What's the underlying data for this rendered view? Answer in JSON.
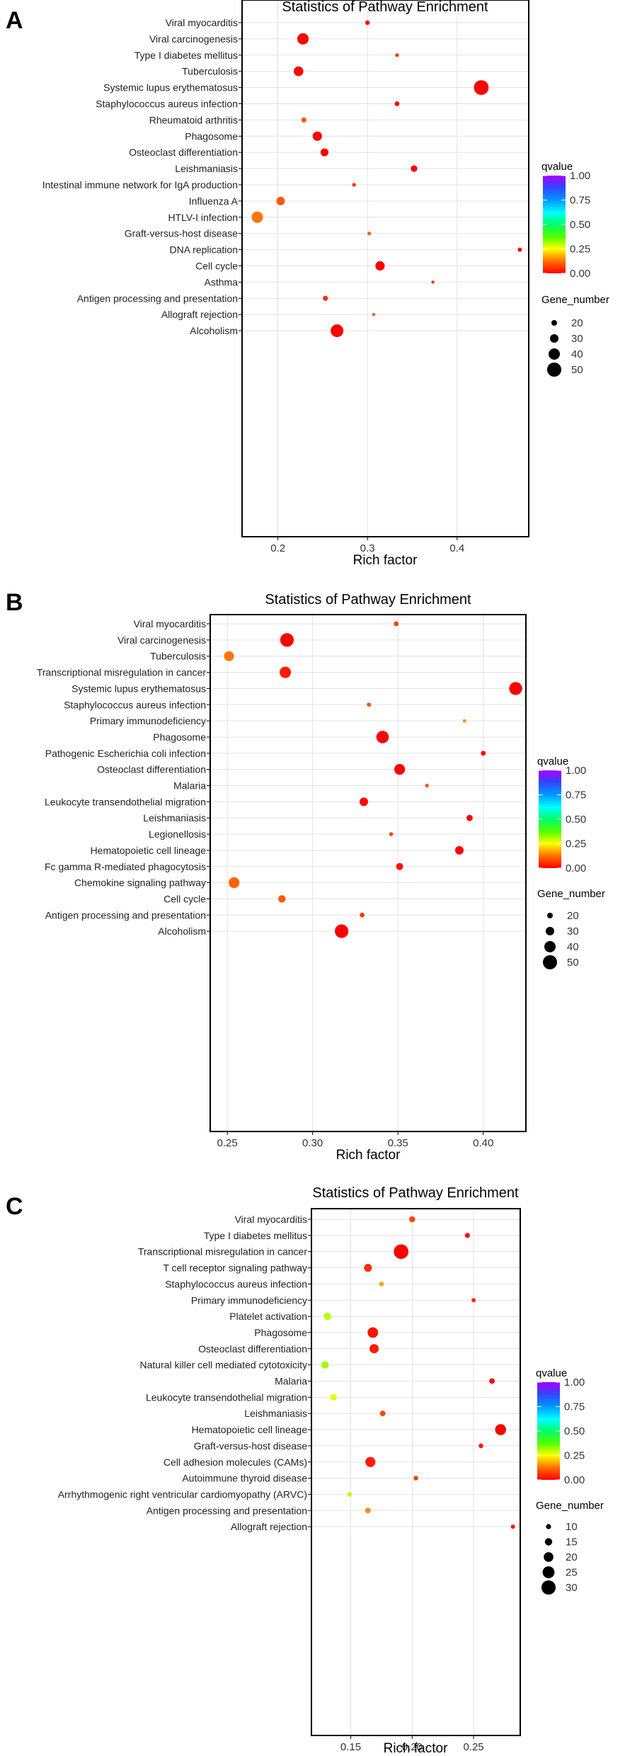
{
  "chart_data": [
    {
      "type": "scatter",
      "panel_label": "A",
      "title": "Statistics of Pathway Enrichment",
      "xlabel": "Rich factor",
      "ylabel": "",
      "xlim": [
        0.16,
        0.48
      ],
      "xticks": [
        0.2,
        0.3,
        0.4
      ],
      "xtick_labels": [
        "0.2",
        "0.3",
        "0.4"
      ],
      "grid": true,
      "legend_position": "right",
      "color_legend": {
        "title": "qvalue",
        "min": 0,
        "max": 1,
        "ticks": [
          "1.00",
          "0.75",
          "0.50",
          "0.25",
          "0.00"
        ]
      },
      "size_legend": {
        "title": "Gene_number",
        "values": [
          20,
          30,
          40,
          50
        ],
        "labels": [
          "20",
          "30",
          "40",
          "50"
        ],
        "min": 10,
        "max": 55
      },
      "points": [
        {
          "pathway": "Viral myocarditis",
          "rich_factor": 0.3,
          "gene_number": 16,
          "qvalue": 0.01
        },
        {
          "pathway": "Viral carcinogenesis",
          "rich_factor": 0.228,
          "gene_number": 40,
          "qvalue": 0.0
        },
        {
          "pathway": "Type I diabetes mellitus",
          "rich_factor": 0.333,
          "gene_number": 13,
          "qvalue": 0.06
        },
        {
          "pathway": "Tuberculosis",
          "rich_factor": 0.223,
          "gene_number": 34,
          "qvalue": 0.0
        },
        {
          "pathway": "Systemic lupus erythematosus",
          "rich_factor": 0.427,
          "gene_number": 52,
          "qvalue": 0.0
        },
        {
          "pathway": "Staphylococcus aureus infection",
          "rich_factor": 0.333,
          "gene_number": 17,
          "qvalue": 0.01
        },
        {
          "pathway": "Rheumatoid arthritis",
          "rich_factor": 0.229,
          "gene_number": 18,
          "qvalue": 0.1
        },
        {
          "pathway": "Phagosome",
          "rich_factor": 0.244,
          "gene_number": 33,
          "qvalue": 0.0
        },
        {
          "pathway": "Osteoclast differentiation",
          "rich_factor": 0.252,
          "gene_number": 28,
          "qvalue": 0.0
        },
        {
          "pathway": "Leishmaniasis",
          "rich_factor": 0.352,
          "gene_number": 23,
          "qvalue": 0.0
        },
        {
          "pathway": "Intestinal immune network for IgA production",
          "rich_factor": 0.285,
          "gene_number": 13,
          "qvalue": 0.05
        },
        {
          "pathway": "Influenza A",
          "rich_factor": 0.203,
          "gene_number": 30,
          "qvalue": 0.1
        },
        {
          "pathway": "HTLV-I infection",
          "rich_factor": 0.177,
          "gene_number": 40,
          "qvalue": 0.13
        },
        {
          "pathway": "Graft-versus-host disease",
          "rich_factor": 0.302,
          "gene_number": 13,
          "qvalue": 0.1
        },
        {
          "pathway": "DNA replication",
          "rich_factor": 0.47,
          "gene_number": 15,
          "qvalue": 0.0
        },
        {
          "pathway": "Cell cycle",
          "rich_factor": 0.314,
          "gene_number": 33,
          "qvalue": 0.0
        },
        {
          "pathway": "Asthma",
          "rich_factor": 0.373,
          "gene_number": 11,
          "qvalue": 0.05
        },
        {
          "pathway": "Antigen processing and presentation",
          "rich_factor": 0.253,
          "gene_number": 18,
          "qvalue": 0.05
        },
        {
          "pathway": "Allograft rejection",
          "rich_factor": 0.307,
          "gene_number": 11,
          "qvalue": 0.1
        },
        {
          "pathway": "Alcoholism",
          "rich_factor": 0.266,
          "gene_number": 45,
          "qvalue": 0.0
        }
      ]
    },
    {
      "type": "scatter",
      "panel_label": "B",
      "title": "Statistics of Pathway Enrichment",
      "xlabel": "Rich factor",
      "ylabel": "",
      "xlim": [
        0.24,
        0.425
      ],
      "xticks": [
        0.25,
        0.3,
        0.35,
        0.4
      ],
      "xtick_labels": [
        "0.25",
        "0.30",
        "0.35",
        "0.40"
      ],
      "grid": true,
      "legend_position": "right",
      "color_legend": {
        "title": "qvalue",
        "min": 0,
        "max": 1,
        "ticks": [
          "1.00",
          "0.75",
          "0.50",
          "0.25",
          "0.00"
        ]
      },
      "size_legend": {
        "title": "Gene_number",
        "values": [
          20,
          30,
          40,
          50
        ],
        "labels": [
          "20",
          "30",
          "40",
          "50"
        ],
        "min": 10,
        "max": 55
      },
      "points": [
        {
          "pathway": "Viral myocarditis",
          "rich_factor": 0.349,
          "gene_number": 17,
          "qvalue": 0.07
        },
        {
          "pathway": "Viral carcinogenesis",
          "rich_factor": 0.285,
          "gene_number": 48,
          "qvalue": 0.0
        },
        {
          "pathway": "Tuberculosis",
          "rich_factor": 0.251,
          "gene_number": 35,
          "qvalue": 0.13
        },
        {
          "pathway": "Transcriptional misregulation in cancer",
          "rich_factor": 0.284,
          "gene_number": 40,
          "qvalue": 0.03
        },
        {
          "pathway": "Systemic lupus erythematosus",
          "rich_factor": 0.419,
          "gene_number": 46,
          "qvalue": 0.0
        },
        {
          "pathway": "Staphylococcus aureus infection",
          "rich_factor": 0.333,
          "gene_number": 15,
          "qvalue": 0.1
        },
        {
          "pathway": "Primary immunodeficiency",
          "rich_factor": 0.389,
          "gene_number": 12,
          "qvalue": 0.15
        },
        {
          "pathway": "Phagosome",
          "rich_factor": 0.341,
          "gene_number": 44,
          "qvalue": 0.0
        },
        {
          "pathway": "Pathogenic Escherichia coli infection",
          "rich_factor": 0.4,
          "gene_number": 17,
          "qvalue": 0.0
        },
        {
          "pathway": "Osteoclast differentiation",
          "rich_factor": 0.351,
          "gene_number": 38,
          "qvalue": 0.0
        },
        {
          "pathway": "Malaria",
          "rich_factor": 0.367,
          "gene_number": 13,
          "qvalue": 0.09
        },
        {
          "pathway": "Leukocyte transendothelial migration",
          "rich_factor": 0.33,
          "gene_number": 30,
          "qvalue": 0.01
        },
        {
          "pathway": "Leishmaniasis",
          "rich_factor": 0.392,
          "gene_number": 22,
          "qvalue": 0.0
        },
        {
          "pathway": "Legionellosis",
          "rich_factor": 0.346,
          "gene_number": 14,
          "qvalue": 0.08
        },
        {
          "pathway": "Hematopoietic cell lineage",
          "rich_factor": 0.386,
          "gene_number": 30,
          "qvalue": 0.0
        },
        {
          "pathway": "Fc gamma R-mediated phagocytosis",
          "rich_factor": 0.351,
          "gene_number": 25,
          "qvalue": 0.02
        },
        {
          "pathway": "Chemokine signaling pathway",
          "rich_factor": 0.254,
          "gene_number": 38,
          "qvalue": 0.11
        },
        {
          "pathway": "Cell cycle",
          "rich_factor": 0.282,
          "gene_number": 26,
          "qvalue": 0.1
        },
        {
          "pathway": "Antigen processing and presentation",
          "rich_factor": 0.329,
          "gene_number": 17,
          "qvalue": 0.07
        },
        {
          "pathway": "Alcoholism",
          "rich_factor": 0.317,
          "gene_number": 48,
          "qvalue": 0.0
        }
      ]
    },
    {
      "type": "scatter",
      "panel_label": "C",
      "title": "Statistics of Pathway Enrichment",
      "xlabel": "Rich factor",
      "ylabel": "",
      "xlim": [
        0.118,
        0.288
      ],
      "xticks": [
        0.15,
        0.2,
        0.25
      ],
      "xtick_labels": [
        "0.15",
        "0.20",
        "0.25"
      ],
      "grid": true,
      "legend_position": "right",
      "color_legend": {
        "title": "qvalue",
        "min": 0,
        "max": 1,
        "ticks": [
          "1.00",
          "0.75",
          "0.50",
          "0.25",
          "0.00"
        ]
      },
      "size_legend": {
        "title": "Gene_number",
        "values": [
          10,
          15,
          20,
          25,
          30
        ],
        "labels": [
          "10",
          "15",
          "20",
          "25",
          "30"
        ],
        "min": 5,
        "max": 33
      },
      "points": [
        {
          "pathway": "Viral myocarditis",
          "rich_factor": 0.2,
          "gene_number": 12,
          "qvalue": 0.08
        },
        {
          "pathway": "Type I diabetes mellitus",
          "rich_factor": 0.245,
          "gene_number": 10,
          "qvalue": 0.02
        },
        {
          "pathway": "Transcriptional misregulation in cancer",
          "rich_factor": 0.191,
          "gene_number": 31,
          "qvalue": 0.0
        },
        {
          "pathway": "T cell receptor signaling pathway",
          "rich_factor": 0.164,
          "gene_number": 16,
          "qvalue": 0.05
        },
        {
          "pathway": "Staphylococcus aureus infection",
          "rich_factor": 0.175,
          "gene_number": 9,
          "qvalue": 0.17
        },
        {
          "pathway": "Primary immunodeficiency",
          "rich_factor": 0.25,
          "gene_number": 8,
          "qvalue": 0.05
        },
        {
          "pathway": "Platelet activation",
          "rich_factor": 0.131,
          "gene_number": 15,
          "qvalue": 0.3
        },
        {
          "pathway": "Phagosome",
          "rich_factor": 0.168,
          "gene_number": 22,
          "qvalue": 0.02
        },
        {
          "pathway": "Osteoclast differentiation",
          "rich_factor": 0.169,
          "gene_number": 19,
          "qvalue": 0.03
        },
        {
          "pathway": "Natural killer cell mediated cytotoxicity",
          "rich_factor": 0.129,
          "gene_number": 15,
          "qvalue": 0.32
        },
        {
          "pathway": "Malaria",
          "rich_factor": 0.265,
          "gene_number": 11,
          "qvalue": 0.01
        },
        {
          "pathway": "Leukocyte transendothelial migration",
          "rich_factor": 0.136,
          "gene_number": 13,
          "qvalue": 0.27
        },
        {
          "pathway": "Leishmaniasis",
          "rich_factor": 0.176,
          "gene_number": 11,
          "qvalue": 0.08
        },
        {
          "pathway": "Hematopoietic cell lineage",
          "rich_factor": 0.272,
          "gene_number": 23,
          "qvalue": 0.0
        },
        {
          "pathway": "Graft-versus-host disease",
          "rich_factor": 0.256,
          "gene_number": 9,
          "qvalue": 0.02
        },
        {
          "pathway": "Cell adhesion molecules (CAMs)",
          "rich_factor": 0.166,
          "gene_number": 21,
          "qvalue": 0.03
        },
        {
          "pathway": "Autoimmune thyroid disease",
          "rich_factor": 0.203,
          "gene_number": 9,
          "qvalue": 0.07
        },
        {
          "pathway": "Arrhythmogenic right ventricular cardiomyopathy (ARVC)",
          "rich_factor": 0.149,
          "gene_number": 9,
          "qvalue": 0.3
        },
        {
          "pathway": "Antigen processing and presentation",
          "rich_factor": 0.164,
          "gene_number": 11,
          "qvalue": 0.15
        },
        {
          "pathway": "Allograft rejection",
          "rich_factor": 0.282,
          "gene_number": 8,
          "qvalue": 0.02
        }
      ]
    }
  ]
}
